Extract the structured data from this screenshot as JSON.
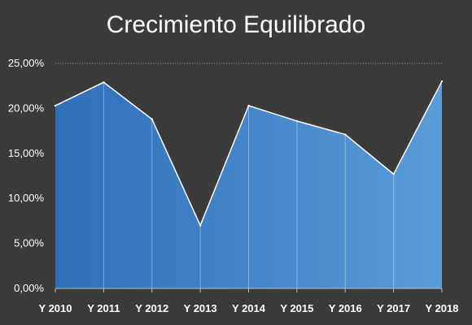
{
  "chart_data": {
    "type": "area",
    "title": "Crecimiento Equilibrado",
    "xlabel": "",
    "ylabel": "",
    "categories": [
      "Y 2010",
      "Y 2011",
      "Y 2012",
      "Y 2013",
      "Y 2014",
      "Y 2015",
      "Y 2016",
      "Y 2017",
      "Y 2018"
    ],
    "series": [
      {
        "values": [
          20.3,
          22.9,
          18.8,
          7.0,
          20.3,
          18.6,
          17.1,
          12.7,
          23.0
        ]
      }
    ],
    "ylim": [
      0,
      25
    ],
    "yticks": [
      0,
      5,
      10,
      15,
      20,
      25
    ],
    "ytick_labels": [
      "0,00%",
      "5,00%",
      "10,00%",
      "15,00%",
      "20,00%",
      "25,00%"
    ],
    "grid": "top gridline dotted",
    "legend": "none",
    "colors": {
      "background": "#3b3b3b",
      "fill_start": "#2f6fba",
      "fill_end": "#5b9bd8",
      "outline": "#ffffff",
      "text": "#ffffff"
    }
  }
}
